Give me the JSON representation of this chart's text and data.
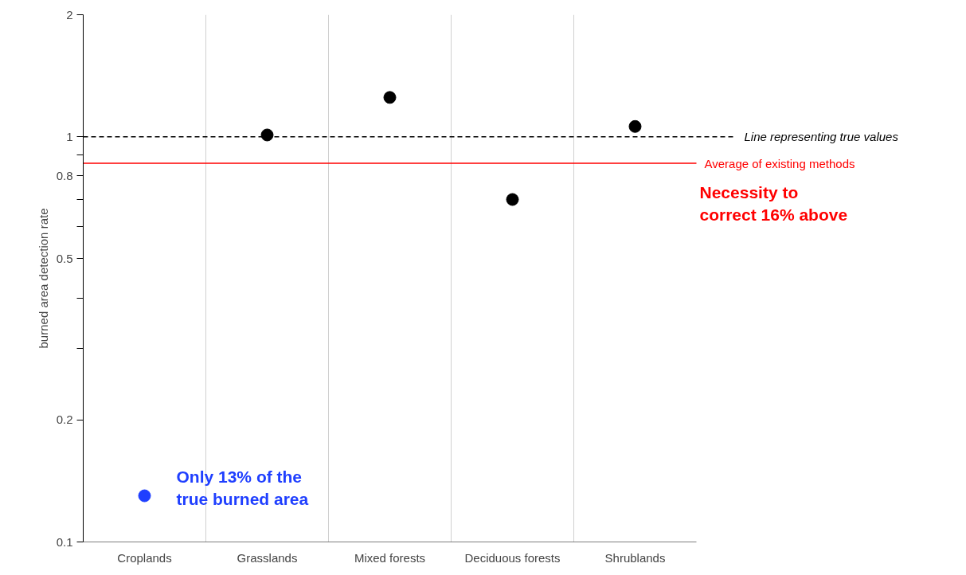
{
  "chart_data": {
    "type": "scatter",
    "ylabel": "burned area detection rate",
    "categories": [
      "Croplands",
      "Grasslands",
      "Mixed forests",
      "Deciduous forests",
      "Shrublands"
    ],
    "values": [
      0.13,
      1.01,
      1.25,
      0.7,
      1.06
    ],
    "colors": [
      "#1f3fff",
      "#000000",
      "#000000",
      "#000000",
      "#000000"
    ],
    "marker": "circle",
    "log": "y",
    "ylim": [
      0.1,
      2
    ],
    "yticks": [
      0.1,
      0.2,
      {
        "value": 0.3,
        "label": null
      },
      {
        "value": 0.4,
        "label": null
      },
      0.5,
      {
        "value": 0.6,
        "label": null
      },
      {
        "value": 0.7,
        "label": null
      },
      0.8,
      {
        "value": 0.9,
        "label": null
      },
      1,
      2
    ],
    "grid": "x",
    "ref_lines": [
      {
        "axis": "y",
        "value": 1,
        "label": "Line representing true values",
        "color": "#000000",
        "line_style": "dashed"
      },
      {
        "axis": "y",
        "value": 0.86,
        "label": "Average of existing methods",
        "color": "#ff0000",
        "line_style": "solid"
      }
    ],
    "annotations": [
      {
        "text": "Only 13% of the true burned area",
        "x": "Croplands",
        "y": 0.13
      },
      "Necessity to correct 16% above"
    ]
  }
}
